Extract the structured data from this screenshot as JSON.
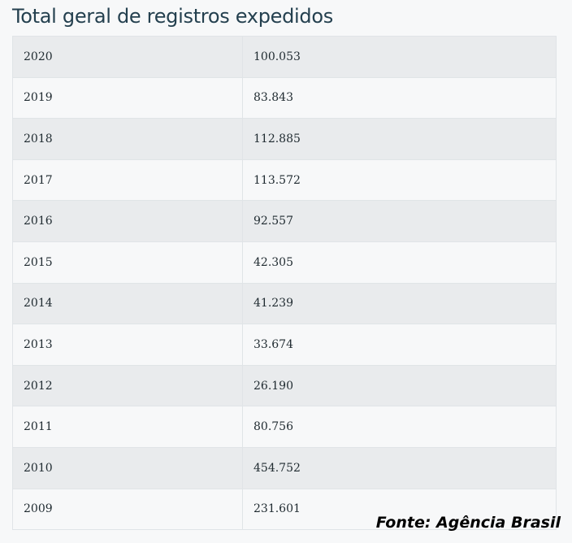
{
  "title": "Total geral de registros expedidos",
  "source": "Fonte: Agência Brasil",
  "chart_data": {
    "type": "table",
    "title": "Total geral de registros expedidos",
    "rows": [
      {
        "year": "2020",
        "value": "100.053"
      },
      {
        "year": "2019",
        "value": "83.843"
      },
      {
        "year": "2018",
        "value": "112.885"
      },
      {
        "year": "2017",
        "value": "113.572"
      },
      {
        "year": "2016",
        "value": "92.557"
      },
      {
        "year": "2015",
        "value": "42.305"
      },
      {
        "year": "2014",
        "value": "41.239"
      },
      {
        "year": "2013",
        "value": "33.674"
      },
      {
        "year": "2012",
        "value": "26.190"
      },
      {
        "year": "2011",
        "value": "80.756"
      },
      {
        "year": "2010",
        "value": "454.752"
      },
      {
        "year": "2009",
        "value": "231.601"
      }
    ]
  }
}
